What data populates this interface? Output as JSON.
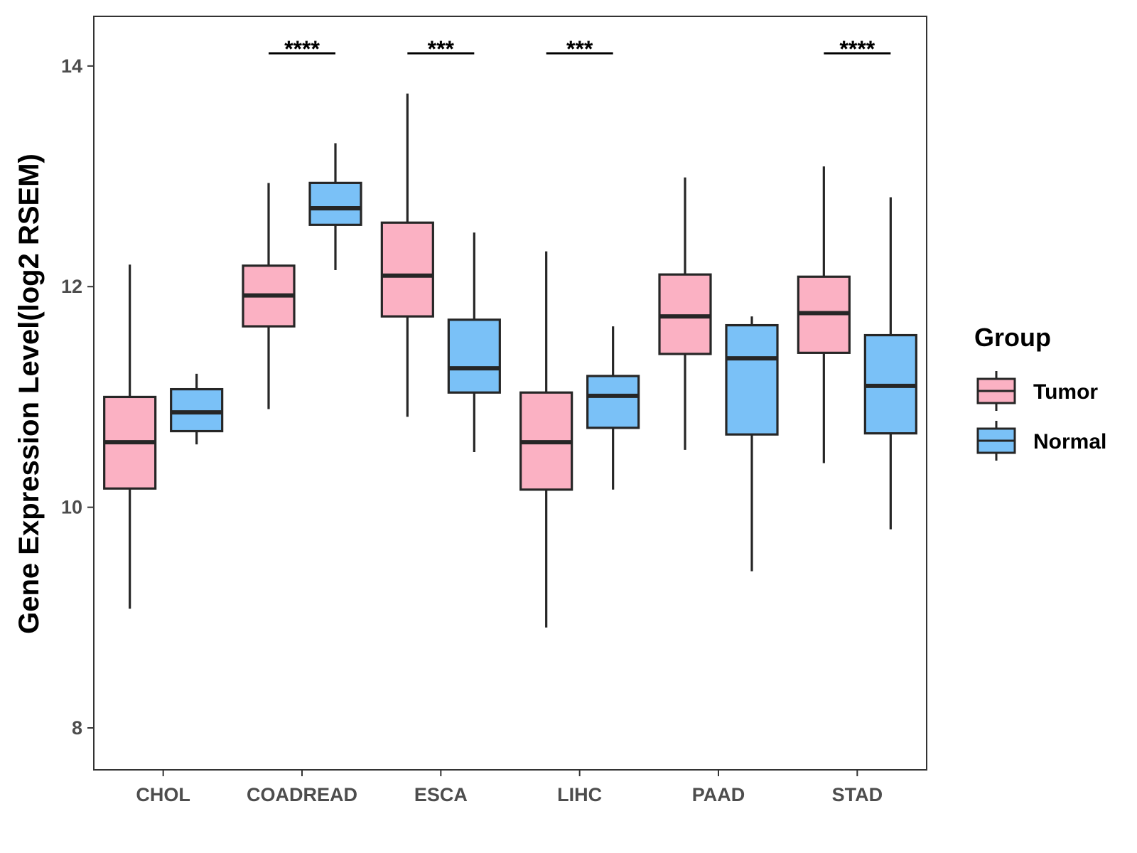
{
  "chart_data": {
    "type": "box",
    "title": "",
    "xlabel": "",
    "ylabel": "Gene Expression Level(log2 RSEM)",
    "ylim": [
      7.62,
      14.45
    ],
    "yticks": [
      8,
      10,
      12,
      14
    ],
    "categories": [
      "CHOL",
      "COADREAD",
      "ESCA",
      "LIHC",
      "PAAD",
      "STAD"
    ],
    "legend": {
      "title": "Group",
      "position": "right"
    },
    "series": [
      {
        "name": "Tumor",
        "color": "#FBB1C3",
        "boxes": [
          {
            "category": "CHOL",
            "whisker_low": 9.08,
            "q1": 10.17,
            "median": 10.59,
            "q3": 11.0,
            "whisker_high": 12.2
          },
          {
            "category": "COADREAD",
            "whisker_low": 10.89,
            "q1": 11.64,
            "median": 11.92,
            "q3": 12.19,
            "whisker_high": 12.94
          },
          {
            "category": "ESCA",
            "whisker_low": 10.82,
            "q1": 11.73,
            "median": 12.1,
            "q3": 12.58,
            "whisker_high": 13.75
          },
          {
            "category": "LIHC",
            "whisker_low": 8.91,
            "q1": 10.16,
            "median": 10.59,
            "q3": 11.04,
            "whisker_high": 12.32
          },
          {
            "category": "PAAD",
            "whisker_low": 10.52,
            "q1": 11.39,
            "median": 11.73,
            "q3": 12.11,
            "whisker_high": 12.99
          },
          {
            "category": "STAD",
            "whisker_low": 10.4,
            "q1": 11.4,
            "median": 11.76,
            "q3": 12.09,
            "whisker_high": 13.09
          }
        ]
      },
      {
        "name": "Normal",
        "color": "#7AC1F7",
        "boxes": [
          {
            "category": "CHOL",
            "whisker_low": 10.57,
            "q1": 10.69,
            "median": 10.86,
            "q3": 11.07,
            "whisker_high": 11.21
          },
          {
            "category": "COADREAD",
            "whisker_low": 12.15,
            "q1": 12.56,
            "median": 12.71,
            "q3": 12.94,
            "whisker_high": 13.3
          },
          {
            "category": "ESCA",
            "whisker_low": 10.5,
            "q1": 11.04,
            "median": 11.26,
            "q3": 11.7,
            "whisker_high": 12.49
          },
          {
            "category": "LIHC",
            "whisker_low": 10.16,
            "q1": 10.72,
            "median": 11.01,
            "q3": 11.19,
            "whisker_high": 11.64
          },
          {
            "category": "PAAD",
            "whisker_low": 9.42,
            "q1": 10.66,
            "median": 11.35,
            "q3": 11.65,
            "whisker_high": 11.73
          },
          {
            "category": "STAD",
            "whisker_low": 9.8,
            "q1": 10.67,
            "median": 11.1,
            "q3": 11.56,
            "whisker_high": 12.81
          }
        ]
      }
    ],
    "significance": [
      {
        "category": "COADREAD",
        "label": "****"
      },
      {
        "category": "ESCA",
        "label": "***"
      },
      {
        "category": "LIHC",
        "label": "***"
      },
      {
        "category": "STAD",
        "label": "****"
      }
    ]
  }
}
